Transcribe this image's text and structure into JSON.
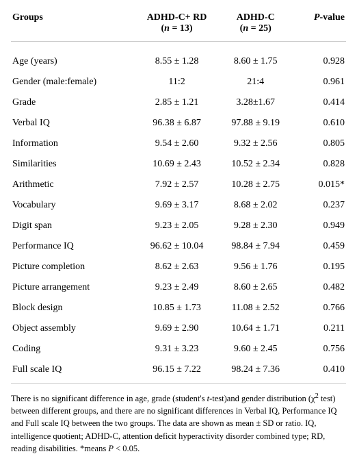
{
  "table": {
    "header": {
      "groups_label": "Groups",
      "col1_label": "ADHD-C+ RD",
      "col1_n": "(",
      "col1_n_ital": "n",
      "col1_n_rest": " = 13)",
      "col2_label": "ADHD-C",
      "col2_n": "(",
      "col2_n_ital": "n",
      "col2_n_rest": " = 25)",
      "p_label_ital": "P",
      "p_label_rest": "-value"
    },
    "rows": [
      {
        "label": "Age (years)",
        "v1": "8.55 ± 1.28",
        "v2": "8.60 ± 1.75",
        "p": "0.928"
      },
      {
        "label": "Gender (male:female)",
        "v1": "11:2",
        "v2": "21:4",
        "p": "0.961"
      },
      {
        "label": "Grade",
        "v1": "2.85 ± 1.21",
        "v2": "3.28±1.67",
        "p": "0.414"
      },
      {
        "label": "Verbal IQ",
        "v1": "96.38 ± 6.87",
        "v2": "97.88 ± 9.19",
        "p": "0.610"
      },
      {
        "label": "Information",
        "v1": "9.54 ± 2.60",
        "v2": "9.32 ± 2.56",
        "p": "0.805"
      },
      {
        "label": "Similarities",
        "v1": "10.69 ± 2.43",
        "v2": "10.52 ± 2.34",
        "p": "0.828"
      },
      {
        "label": "Arithmetic",
        "v1": "7.92 ± 2.57",
        "v2": "10.28 ± 2.75",
        "p": "0.015*"
      },
      {
        "label": "Vocabulary",
        "v1": "9.69 ± 3.17",
        "v2": "8.68 ± 2.02",
        "p": "0.237"
      },
      {
        "label": "Digit span",
        "v1": "9.23 ± 2.05",
        "v2": "9.28 ± 2.30",
        "p": "0.949"
      },
      {
        "label": "Performance IQ",
        "v1": "96.62 ± 10.04",
        "v2": "98.84 ± 7.94",
        "p": "0.459"
      },
      {
        "label": "Picture completion",
        "v1": "8.62 ± 2.63",
        "v2": "9.56 ± 1.76",
        "p": "0.195"
      },
      {
        "label": "Picture arrangement",
        "v1": "9.23 ± 2.49",
        "v2": "8.60 ± 2.65",
        "p": "0.482"
      },
      {
        "label": "Block design",
        "v1": "10.85 ± 1.73",
        "v2": "11.08 ± 2.52",
        "p": "0.766"
      },
      {
        "label": "Object assembly",
        "v1": "9.69 ± 2.90",
        "v2": "10.64 ± 1.71",
        "p": "0.211"
      },
      {
        "label": "Coding",
        "v1": "9.31 ± 3.23",
        "v2": "9.60 ± 2.45",
        "p": "0.756"
      },
      {
        "label": "Full scale IQ",
        "v1": "96.15 ± 7.22",
        "v2": "98.24 ± 7.36",
        "p": "0.410"
      }
    ],
    "footnote_parts": {
      "a": "There is no significant difference in age, grade (student's ",
      "b_ital": "t",
      "c": "-test)and gender distribution (χ",
      "d_sup": "2",
      "e": " test) between different groups, and there are no significant differences in Verbal IQ, Performance IQ and Full scale IQ between the two groups. The data are shown as mean ± SD or ratio. IQ, intelligence quotient; ADHD-C, attention deficit hyperactivity disorder combined type; RD, reading disabilities. *means ",
      "f_ital": "P",
      "g": " < 0.05."
    }
  }
}
